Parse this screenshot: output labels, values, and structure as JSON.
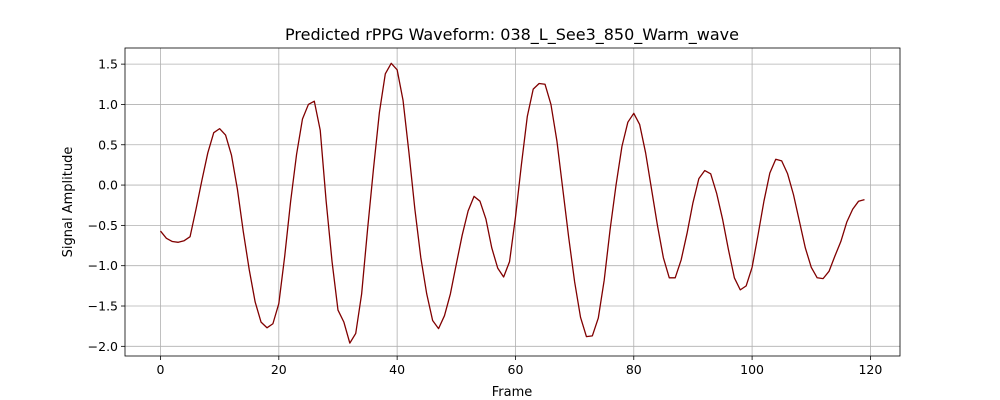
{
  "chart_data": {
    "type": "line",
    "title": "Predicted rPPG Waveform: 038_L_See3_850_Warm_wave",
    "xlabel": "Frame",
    "ylabel": "Signal Amplitude",
    "xlim": [
      -6,
      125
    ],
    "ylim": [
      -2.12,
      1.7
    ],
    "xticks": [
      0,
      20,
      40,
      60,
      80,
      100,
      120
    ],
    "xtick_labels": [
      "0",
      "20",
      "40",
      "60",
      "80",
      "100",
      "120"
    ],
    "yticks": [
      -2.0,
      -1.5,
      -1.0,
      -0.5,
      0.0,
      0.5,
      1.0,
      1.5
    ],
    "ytick_labels": [
      "−2.0",
      "−1.5",
      "−1.0",
      "−0.5",
      "0.0",
      "0.5",
      "1.0",
      "1.5"
    ],
    "grid": true,
    "series": [
      {
        "color": "#800000",
        "x": [
          0,
          1,
          2,
          3,
          4,
          5,
          6,
          7,
          8,
          9,
          10,
          11,
          12,
          13,
          14,
          15,
          16,
          17,
          18,
          19,
          20,
          21,
          22,
          23,
          24,
          25,
          26,
          27,
          28,
          29,
          30,
          31,
          32,
          33,
          34,
          35,
          36,
          37,
          38,
          39,
          40,
          41,
          42,
          43,
          44,
          45,
          46,
          47,
          48,
          49,
          50,
          51,
          52,
          53,
          54,
          55,
          56,
          57,
          58,
          59,
          60,
          61,
          62,
          63,
          64,
          65,
          66,
          67,
          68,
          69,
          70,
          71,
          72,
          73,
          74,
          75,
          76,
          77,
          78,
          79,
          80,
          81,
          82,
          83,
          84,
          85,
          86,
          87,
          88,
          89,
          90,
          91,
          92,
          93,
          94,
          95,
          96,
          97,
          98,
          99,
          100,
          101,
          102,
          103,
          104,
          105,
          106,
          107,
          108,
          109,
          110,
          111,
          112,
          113,
          114,
          115,
          116,
          117,
          118,
          119
        ],
        "y": [
          -0.57,
          -0.66,
          -0.7,
          -0.71,
          -0.69,
          -0.64,
          -0.3,
          0.06,
          0.4,
          0.65,
          0.7,
          0.62,
          0.37,
          -0.05,
          -0.58,
          -1.05,
          -1.45,
          -1.7,
          -1.77,
          -1.72,
          -1.47,
          -0.88,
          -0.2,
          0.38,
          0.82,
          1.0,
          1.04,
          0.68,
          -0.2,
          -0.95,
          -1.55,
          -1.7,
          -1.96,
          -1.84,
          -1.35,
          -0.55,
          0.2,
          0.9,
          1.38,
          1.51,
          1.43,
          1.05,
          0.4,
          -0.3,
          -0.9,
          -1.35,
          -1.68,
          -1.78,
          -1.62,
          -1.35,
          -0.98,
          -0.62,
          -0.32,
          -0.14,
          -0.2,
          -0.42,
          -0.78,
          -1.03,
          -1.14,
          -0.95,
          -0.4,
          0.25,
          0.85,
          1.19,
          1.26,
          1.25,
          1.0,
          0.55,
          -0.05,
          -0.65,
          -1.2,
          -1.64,
          -1.88,
          -1.87,
          -1.65,
          -1.18,
          -0.55,
          0.0,
          0.48,
          0.78,
          0.89,
          0.75,
          0.4,
          -0.05,
          -0.5,
          -0.9,
          -1.15,
          -1.15,
          -0.93,
          -0.6,
          -0.22,
          0.08,
          0.18,
          0.14,
          -0.1,
          -0.42,
          -0.8,
          -1.15,
          -1.3,
          -1.25,
          -1.02,
          -0.62,
          -0.2,
          0.15,
          0.32,
          0.3,
          0.14,
          -0.12,
          -0.45,
          -0.78,
          -1.02,
          -1.15,
          -1.16,
          -1.07,
          -0.88,
          -0.7,
          -0.46,
          -0.3,
          -0.2,
          -0.18
        ]
      }
    ]
  }
}
